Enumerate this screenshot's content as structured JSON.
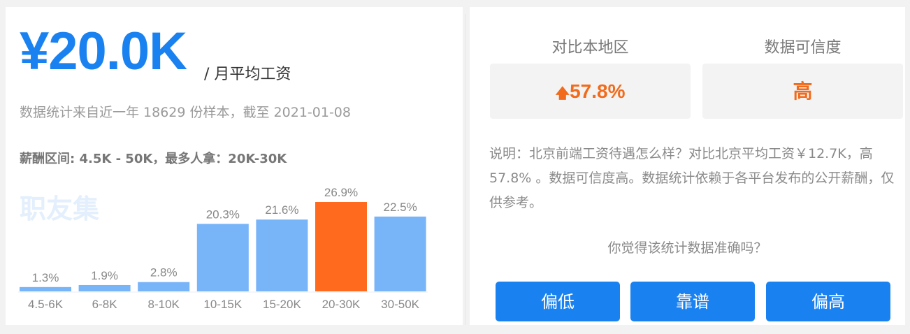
{
  "salary": {
    "amount": "¥20.0K",
    "unit": "/ 月平均工资",
    "source": "数据统计来自近一年 18629 份样本，截至 2021-01-08",
    "range": "薪酬区间: 4.5K - 50K，最多人拿：20K-30K",
    "watermark": "职友集"
  },
  "compare": {
    "region_label": "对比本地区",
    "region_value": "57.8%",
    "credibility_label": "数据可信度",
    "credibility_value": "高",
    "arrow_icon": "arrow-up-icon"
  },
  "description": "说明：北京前端工资待遇怎么样？对比北京平均工资￥12.7K，高 57.8% 。数据可信度高。数据统计依赖于各平台发布的公开薪酬，仅供参考。",
  "feedback": {
    "question": "你觉得该统计数据准确吗？",
    "buttons": [
      "偏低",
      "靠谱",
      "偏高"
    ]
  },
  "colors": {
    "accent": "#1a82f0",
    "bar": "#78b4f8",
    "highlight": "#ff6a1f",
    "orange_text": "#f26a1b"
  },
  "chart_data": {
    "type": "bar",
    "categories": [
      "4.5-6K",
      "6-8K",
      "8-10K",
      "10-15K",
      "15-20K",
      "20-30K",
      "30-50K"
    ],
    "values": [
      1.3,
      1.9,
      2.8,
      20.3,
      21.6,
      26.9,
      22.5
    ],
    "labels": [
      "1.3%",
      "1.9%",
      "2.8%",
      "20.3%",
      "21.6%",
      "26.9%",
      "22.5%"
    ],
    "highlight_index": 5,
    "ylim": [
      0,
      26.9
    ],
    "grid": false
  }
}
